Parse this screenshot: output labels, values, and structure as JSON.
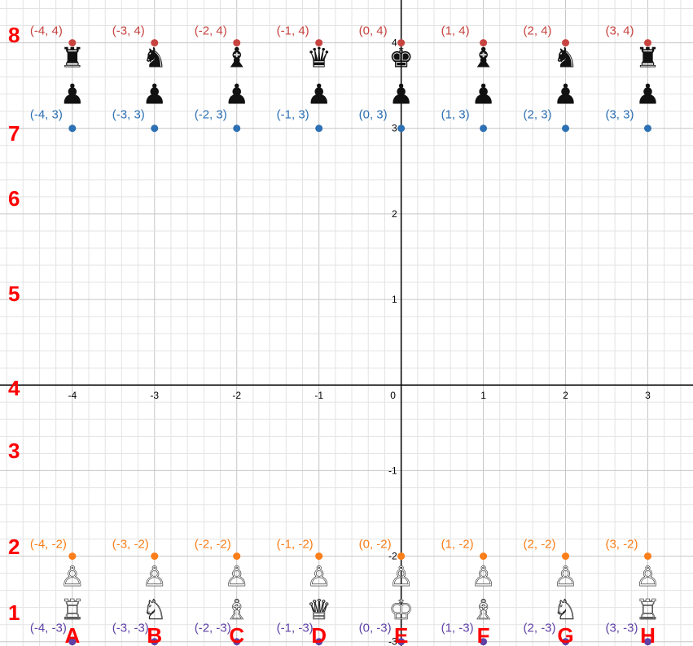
{
  "chart_data": {
    "type": "scatter",
    "xlim": [
      -4.88,
      3.55
    ],
    "ylim": [
      -3.05,
      4.5
    ],
    "grid": true,
    "x_ticks": [
      -4,
      -3,
      -2,
      -1,
      0,
      1,
      2,
      3
    ],
    "x_tick_labels": [
      "-4",
      "-3",
      "-2",
      "-1",
      "0",
      "1",
      "2",
      "3"
    ],
    "y_ticks": [
      4,
      3,
      2,
      1,
      -1,
      -2,
      -3
    ],
    "y_tick_labels": [
      "4",
      "3",
      "2",
      "1",
      "-1",
      "-2",
      "-3"
    ],
    "series": [
      {
        "color": "#c74440",
        "points": [
          {
            "x": -4,
            "y": 4,
            "label": "(-4, 4)"
          },
          {
            "x": -3,
            "y": 4,
            "label": "(-3, 4)"
          },
          {
            "x": -2,
            "y": 4,
            "label": "(-2, 4)"
          },
          {
            "x": -1,
            "y": 4,
            "label": "(-1, 4)"
          },
          {
            "x": 0,
            "y": 4,
            "label": "(0, 4)"
          },
          {
            "x": 1,
            "y": 4,
            "label": "(1, 4)"
          },
          {
            "x": 2,
            "y": 4,
            "label": "(2, 4)"
          },
          {
            "x": 3,
            "y": 4,
            "label": "(3, 4)"
          }
        ]
      },
      {
        "color": "#2d70b3",
        "points": [
          {
            "x": -4,
            "y": 3,
            "label": "(-4, 3)"
          },
          {
            "x": -3,
            "y": 3,
            "label": "(-3, 3)"
          },
          {
            "x": -2,
            "y": 3,
            "label": "(-2, 3)"
          },
          {
            "x": -1,
            "y": 3,
            "label": "(-1, 3)"
          },
          {
            "x": 0,
            "y": 3,
            "label": "(0, 3)"
          },
          {
            "x": 1,
            "y": 3,
            "label": "(1, 3)"
          },
          {
            "x": 2,
            "y": 3,
            "label": "(2, 3)"
          },
          {
            "x": 3,
            "y": 3,
            "label": "(3, 3)"
          }
        ]
      },
      {
        "color": "#fa7e19",
        "points": [
          {
            "x": -4,
            "y": -2,
            "label": "(-4, -2)"
          },
          {
            "x": -3,
            "y": -2,
            "label": "(-3, -2)"
          },
          {
            "x": -2,
            "y": -2,
            "label": "(-2, -2)"
          },
          {
            "x": -1,
            "y": -2,
            "label": "(-1, -2)"
          },
          {
            "x": 0,
            "y": -2,
            "label": "(0, -2)"
          },
          {
            "x": 1,
            "y": -2,
            "label": "(1, -2)"
          },
          {
            "x": 2,
            "y": -2,
            "label": "(2, -2)"
          },
          {
            "x": 3,
            "y": -2,
            "label": "(3, -2)"
          }
        ]
      },
      {
        "color": "#6042a6",
        "points": [
          {
            "x": -4,
            "y": -3,
            "label": "(-4, -3)"
          },
          {
            "x": -3,
            "y": -3,
            "label": "(-3, -3)"
          },
          {
            "x": -2,
            "y": -3,
            "label": "(-2, -3)"
          },
          {
            "x": -1,
            "y": -3,
            "label": "(-1, -3)"
          },
          {
            "x": 0,
            "y": -3,
            "label": "(0, -3)"
          },
          {
            "x": 1,
            "y": -3,
            "label": "(1, -3)"
          },
          {
            "x": 2,
            "y": -3,
            "label": "(2, -3)"
          },
          {
            "x": 3,
            "y": -3,
            "label": "(3, -3)"
          }
        ]
      }
    ],
    "pieces": {
      "black_back_rank": [
        "♜",
        "♞",
        "♝",
        "♛",
        "♚",
        "♝",
        "♞",
        "♜"
      ],
      "black_pawns": [
        "♟",
        "♟",
        "♟",
        "♟",
        "♟",
        "♟",
        "♟",
        "♟"
      ],
      "white_pawns": [
        "♙",
        "♙",
        "♙",
        "♙",
        "♙",
        "♙",
        "♙",
        "♙"
      ],
      "white_back_rank": [
        "♖",
        "♘",
        "♗",
        "♕",
        "♔",
        "♗",
        "♘",
        "♖"
      ]
    },
    "rank_labels": [
      "8",
      "7",
      "6",
      "5",
      "4",
      "3",
      "2",
      "1"
    ],
    "file_labels": [
      "A",
      "B",
      "C",
      "D",
      "E",
      "F",
      "G",
      "H"
    ],
    "colors": {
      "annotation": "#ff0000",
      "black_piece": "#111111",
      "white_piece": "#ffffff"
    }
  }
}
